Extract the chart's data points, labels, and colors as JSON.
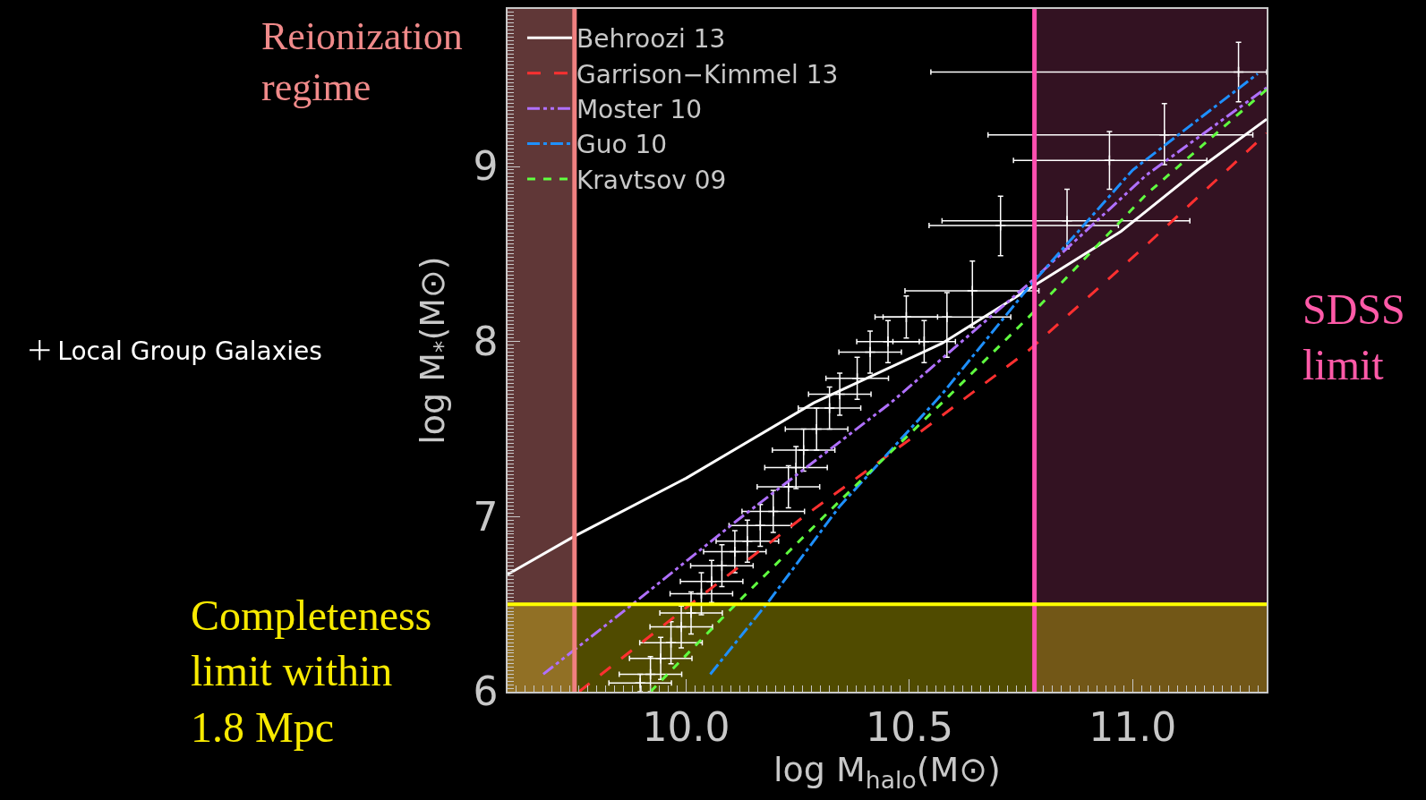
{
  "chart_data": {
    "type": "line",
    "xlabel": "log M$_{halo}$(M⊙)",
    "ylabel": "log M$_{*}$(M⊙)",
    "xlim": [
      9.6,
      11.3
    ],
    "ylim": [
      6.0,
      9.9
    ],
    "xticks": [
      {
        "value": 10.0,
        "label": "10.0"
      },
      {
        "value": 10.5,
        "label": "10.5"
      },
      {
        "value": 11.0,
        "label": "11.0"
      }
    ],
    "yticks": [
      6,
      7,
      8,
      9
    ],
    "legend": "top left",
    "grid": false,
    "series": [
      {
        "name": "Behroozi 13",
        "color": "#ffffff",
        "line_style": "solid",
        "x": [
          9.6,
          9.751,
          10.0,
          10.286,
          10.573,
          10.767,
          10.974,
          11.145,
          11.3
        ],
        "values": [
          6.67,
          6.89,
          7.22,
          7.65,
          7.99,
          8.3,
          8.63,
          8.98,
          9.27
        ]
      },
      {
        "name": "Garrison−Kimmel 13",
        "color": "#ff3030",
        "line_style": "longdash",
        "x": [
          9.76,
          10.0,
          10.263,
          10.538,
          10.767,
          11.03,
          11.3
        ],
        "values": [
          6.0,
          6.48,
          7.0,
          7.51,
          7.95,
          8.55,
          9.19
        ]
      },
      {
        "name": "Moster 10",
        "color": "#b070ff",
        "line_style": "dashdotdot",
        "x": [
          9.68,
          9.885,
          10.115,
          10.458,
          10.767,
          11.03,
          11.3
        ],
        "values": [
          6.1,
          6.51,
          6.98,
          7.65,
          8.33,
          8.95,
          9.45
        ]
      },
      {
        "name": "Guo 10",
        "color": "#1e90ff",
        "line_style": "dashdot",
        "x": [
          10.054,
          10.183,
          10.344,
          10.573,
          10.767,
          11.0,
          11.28
        ],
        "values": [
          6.1,
          6.51,
          7.06,
          7.7,
          8.31,
          8.98,
          9.53
        ]
      },
      {
        "name": "Kravtsov 09",
        "color": "#60ff40",
        "line_style": "dashed",
        "x": [
          9.92,
          10.115,
          10.344,
          10.573,
          10.767,
          11.03,
          11.3
        ],
        "values": [
          6.0,
          6.51,
          7.09,
          7.65,
          8.14,
          8.84,
          9.44
        ]
      },
      {
        "name": "Local Group Galaxies",
        "type": "scatter",
        "marker": "cross",
        "color": "#ffffff",
        "x": [
          11.237,
          11.071,
          10.948,
          10.704,
          10.853,
          10.641,
          10.584,
          10.493,
          10.533,
          10.452,
          10.412,
          10.383,
          10.344,
          10.321,
          10.292,
          10.263,
          10.246,
          10.229,
          10.195,
          10.166,
          10.137,
          10.109,
          10.08,
          10.057,
          10.034,
          10.011,
          9.989,
          9.966,
          9.943,
          9.92,
          9.897
        ],
        "values": [
          9.54,
          9.18,
          9.035,
          8.663,
          8.69,
          8.29,
          8.14,
          8.14,
          8.0,
          8.0,
          7.94,
          7.79,
          7.7,
          7.62,
          7.5,
          7.38,
          7.28,
          7.17,
          7.03,
          6.95,
          6.86,
          6.8,
          6.72,
          6.63,
          6.56,
          6.45,
          6.37,
          6.28,
          6.19,
          6.1,
          6.05
        ],
        "xerrors": [
          [
            10.548,
            11.3
          ],
          [
            10.676,
            11.269
          ],
          [
            10.733,
            11.166
          ],
          [
            10.544,
            10.968
          ],
          [
            10.573,
            11.128
          ],
          [
            10.49,
            10.79
          ],
          [
            10.441,
            10.727
          ],
          0.07,
          0.07,
          0.07,
          0.07,
          0.07,
          0.07,
          0.07,
          0.07,
          0.07,
          0.07,
          0.07,
          0.07,
          0.07,
          0.07,
          0.07,
          0.07,
          0.07,
          0.07,
          0.07,
          0.07,
          0.07,
          0.07,
          0.07,
          0.07
        ],
        "errors": [
          0.17,
          [
            9.01,
            9.36
          ],
          [
            8.87,
            9.2
          ],
          [
            8.49,
            8.83
          ],
          [
            8.53,
            8.87
          ],
          [
            8.08,
            8.46
          ],
          [
            7.91,
            8.28
          ],
          0.12,
          0.12,
          0.12,
          0.12,
          0.12,
          0.12,
          0.12,
          0.12,
          0.12,
          0.12,
          0.12,
          0.12,
          0.12,
          0.12,
          0.12,
          0.12,
          0.12,
          0.12,
          0.12,
          0.12,
          0.12,
          0.12,
          0.1,
          0.05
        ]
      }
    ],
    "ref_lines": [
      {
        "axis": "x",
        "value": 9.75,
        "color": "#f08080"
      },
      {
        "axis": "x",
        "value": 10.78,
        "color": "#ff4fb0"
      },
      {
        "axis": "y",
        "value": 6.5,
        "color": "#ffff00"
      }
    ],
    "bands": [
      {
        "axis": "x",
        "from": 9.6,
        "to": 9.75,
        "label": "Reionization regime",
        "color": "#f08a8a"
      },
      {
        "axis": "x",
        "from": 10.78,
        "to": 11.3,
        "label": "SDSS limit",
        "color": "#ff5aa8"
      },
      {
        "axis": "y",
        "from": 6.0,
        "to": 6.5,
        "label": "Completeness limit within 1.8 Mpc",
        "color": "#f8ea00"
      }
    ]
  }
}
